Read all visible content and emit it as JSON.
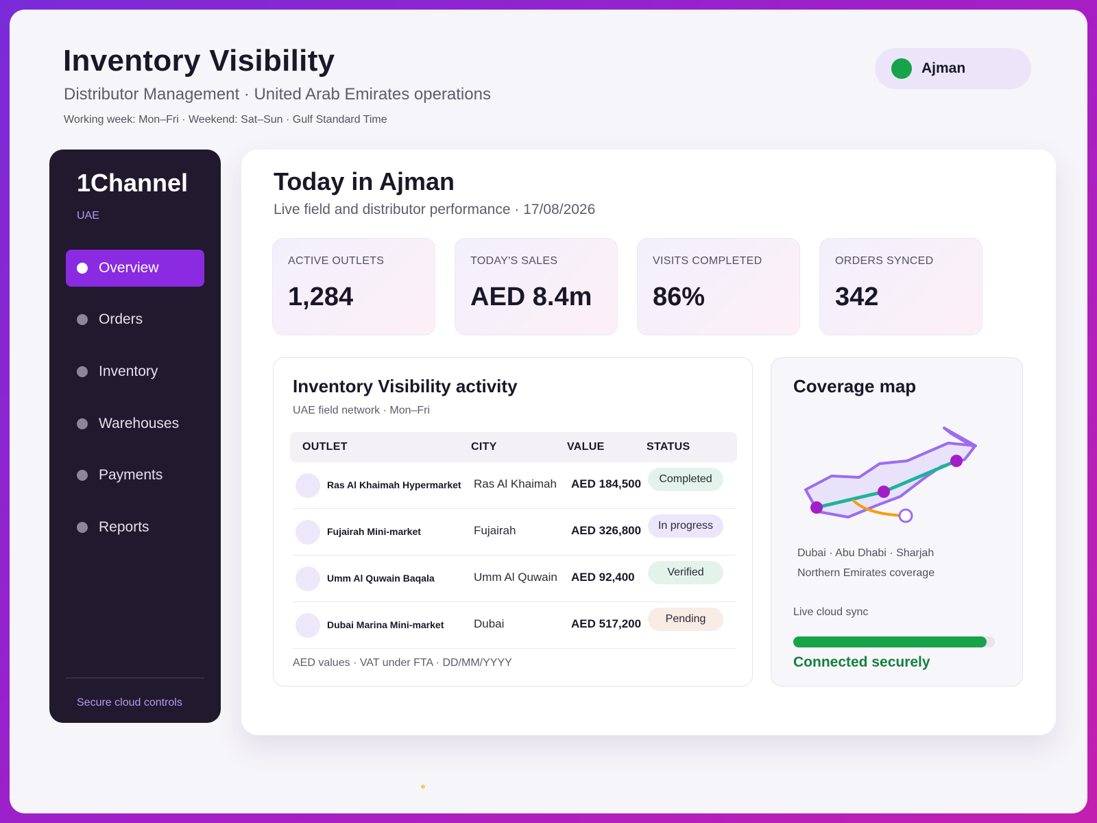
{
  "header": {
    "title": "Inventory Visibility",
    "subtitle": "Distributor Management · United Arab Emirates operations",
    "meta": "Working week: Mon–Fri · Weekend: Sat–Sun · Gulf Standard Time",
    "location": "Ajman",
    "location_color": "#16a34a"
  },
  "sidebar": {
    "brand": "1Channel",
    "region": "UAE",
    "items": [
      {
        "label": "Overview",
        "active": true
      },
      {
        "label": "Orders",
        "active": false
      },
      {
        "label": "Inventory",
        "active": false
      },
      {
        "label": "Warehouses",
        "active": false
      },
      {
        "label": "Payments",
        "active": false
      },
      {
        "label": "Reports",
        "active": false
      }
    ],
    "footer": "Secure cloud controls",
    "accent": "#8a2be2"
  },
  "main": {
    "title": "Today in Ajman",
    "subtitle": "Live field and distributor performance · 17/08/2026",
    "kpis": [
      {
        "label": "ACTIVE OUTLETS",
        "value": "1,284"
      },
      {
        "label": "TODAY'S SALES",
        "value": "AED 8.4m"
      },
      {
        "label": "VISITS COMPLETED",
        "value": "86%"
      },
      {
        "label": "ORDERS SYNCED",
        "value": "342"
      }
    ]
  },
  "activity": {
    "title": "Inventory Visibility activity",
    "subtitle": "UAE field network · Mon–Fri",
    "columns": [
      "OUTLET",
      "CITY",
      "VALUE",
      "STATUS"
    ],
    "rows": [
      {
        "outlet": "Ras Al Khaimah Hypermarket",
        "city": "Ras Al Khaimah",
        "value": "AED 184,500",
        "status": "Completed",
        "status_color": "#e3f3ec"
      },
      {
        "outlet": "Fujairah Mini-market",
        "city": "Fujairah",
        "value": "AED 326,800",
        "status": "In progress",
        "status_color": "#ece6fa"
      },
      {
        "outlet": "Umm Al Quwain Baqala",
        "city": "Umm Al Quwain",
        "value": "AED 92,400",
        "status": "Verified",
        "status_color": "#e3f3ec"
      },
      {
        "outlet": "Dubai Marina Mini-market",
        "city": "Dubai",
        "value": "AED 517,200",
        "status": "Pending",
        "status_color": "#f8ece4"
      }
    ],
    "footer": "AED values · VAT under FTA · DD/MM/YYYY"
  },
  "coverage": {
    "title": "Coverage map",
    "caption_line1": "Dubai · Abu Dhabi · Sharjah",
    "caption_line2": "Northern Emirates coverage",
    "sync_label": "Live cloud sync",
    "sync_progress": 0.96,
    "sync_status": "Connected securely",
    "colors": {
      "region": "#9b6cf0",
      "route": "#1fb39b",
      "branch": "#f59e0b",
      "node": "#a21fc7"
    }
  }
}
